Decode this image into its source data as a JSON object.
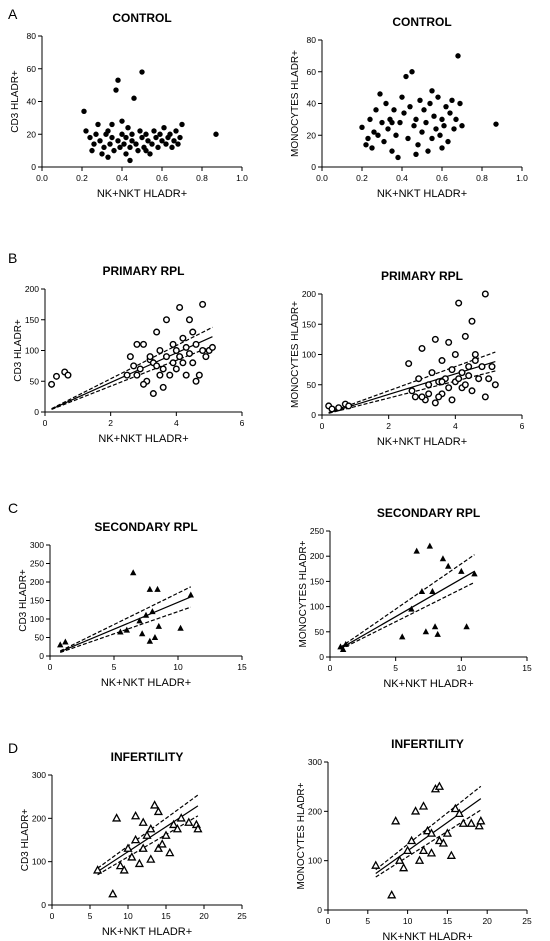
{
  "panel_letters": [
    "A",
    "B",
    "C",
    "D"
  ],
  "chart_data": [
    {
      "type": "scatter",
      "panel": "A",
      "title": "CONTROL",
      "xlabel": "NK+NKT HLADR+",
      "ylabel": "CD3 HLADR+",
      "xlim": [
        0,
        1
      ],
      "ylim": [
        0,
        80
      ],
      "xticks": [
        "0.0",
        "0.2",
        "0.4",
        "0.6",
        "0.8",
        "1.0"
      ],
      "yticks": [
        "0",
        "20",
        "40",
        "60",
        "80"
      ],
      "marker": "filled-circle",
      "fit": false,
      "points": [
        [
          0.21,
          34
        ],
        [
          0.22,
          22
        ],
        [
          0.24,
          18
        ],
        [
          0.25,
          10
        ],
        [
          0.26,
          14
        ],
        [
          0.27,
          20
        ],
        [
          0.28,
          26
        ],
        [
          0.29,
          16
        ],
        [
          0.3,
          8
        ],
        [
          0.31,
          12
        ],
        [
          0.32,
          20
        ],
        [
          0.33,
          22
        ],
        [
          0.34,
          14
        ],
        [
          0.35,
          18
        ],
        [
          0.35,
          26
        ],
        [
          0.36,
          10
        ],
        [
          0.37,
          47
        ],
        [
          0.38,
          53
        ],
        [
          0.38,
          16
        ],
        [
          0.39,
          12
        ],
        [
          0.4,
          20
        ],
        [
          0.4,
          28
        ],
        [
          0.41,
          14
        ],
        [
          0.42,
          18
        ],
        [
          0.42,
          8
        ],
        [
          0.43,
          24
        ],
        [
          0.44,
          12
        ],
        [
          0.45,
          16
        ],
        [
          0.45,
          20
        ],
        [
          0.46,
          42
        ],
        [
          0.47,
          14
        ],
        [
          0.48,
          10
        ],
        [
          0.49,
          22
        ],
        [
          0.5,
          58
        ],
        [
          0.5,
          18
        ],
        [
          0.51,
          12
        ],
        [
          0.52,
          20
        ],
        [
          0.53,
          16
        ],
        [
          0.54,
          8
        ],
        [
          0.55,
          14
        ],
        [
          0.56,
          22
        ],
        [
          0.57,
          18
        ],
        [
          0.58,
          12
        ],
        [
          0.59,
          20
        ],
        [
          0.6,
          16
        ],
        [
          0.61,
          24
        ],
        [
          0.62,
          14
        ],
        [
          0.63,
          18
        ],
        [
          0.64,
          20
        ],
        [
          0.65,
          12
        ],
        [
          0.66,
          16
        ],
        [
          0.67,
          22
        ],
        [
          0.68,
          14
        ],
        [
          0.69,
          18
        ],
        [
          0.7,
          26
        ],
        [
          0.87,
          20
        ],
        [
          0.33,
          6
        ],
        [
          0.44,
          4
        ],
        [
          0.52,
          10
        ]
      ]
    },
    {
      "type": "scatter",
      "panel": "A",
      "title": "CONTROL",
      "xlabel": "NK+NKT HLADR+",
      "ylabel": "MONOCYTES HLADR+",
      "xlim": [
        0,
        1
      ],
      "ylim": [
        0,
        80
      ],
      "xticks": [
        "0.0",
        "0.2",
        "0.4",
        "0.6",
        "0.8",
        "1.0"
      ],
      "yticks": [
        "0",
        "20",
        "40",
        "60",
        "80"
      ],
      "marker": "filled-circle",
      "fit": false,
      "points": [
        [
          0.2,
          25
        ],
        [
          0.22,
          14
        ],
        [
          0.23,
          18
        ],
        [
          0.24,
          30
        ],
        [
          0.25,
          12
        ],
        [
          0.26,
          22
        ],
        [
          0.27,
          36
        ],
        [
          0.28,
          20
        ],
        [
          0.29,
          46
        ],
        [
          0.3,
          28
        ],
        [
          0.31,
          16
        ],
        [
          0.32,
          40
        ],
        [
          0.33,
          24
        ],
        [
          0.34,
          30
        ],
        [
          0.35,
          10
        ],
        [
          0.36,
          36
        ],
        [
          0.37,
          20
        ],
        [
          0.38,
          6
        ],
        [
          0.39,
          28
        ],
        [
          0.4,
          44
        ],
        [
          0.41,
          34
        ],
        [
          0.42,
          57
        ],
        [
          0.43,
          18
        ],
        [
          0.44,
          38
        ],
        [
          0.45,
          60
        ],
        [
          0.46,
          26
        ],
        [
          0.47,
          30
        ],
        [
          0.48,
          14
        ],
        [
          0.49,
          42
        ],
        [
          0.5,
          22
        ],
        [
          0.51,
          36
        ],
        [
          0.52,
          28
        ],
        [
          0.53,
          10
        ],
        [
          0.54,
          40
        ],
        [
          0.55,
          18
        ],
        [
          0.56,
          32
        ],
        [
          0.57,
          24
        ],
        [
          0.58,
          44
        ],
        [
          0.59,
          20
        ],
        [
          0.6,
          30
        ],
        [
          0.61,
          26
        ],
        [
          0.62,
          38
        ],
        [
          0.63,
          16
        ],
        [
          0.64,
          34
        ],
        [
          0.65,
          42
        ],
        [
          0.66,
          24
        ],
        [
          0.67,
          30
        ],
        [
          0.68,
          70
        ],
        [
          0.69,
          40
        ],
        [
          0.7,
          26
        ],
        [
          0.87,
          27
        ],
        [
          0.35,
          28
        ],
        [
          0.47,
          8
        ],
        [
          0.55,
          48
        ],
        [
          0.6,
          12
        ]
      ]
    },
    {
      "type": "scatter",
      "panel": "B",
      "title": "PRIMARY RPL",
      "xlabel": "NK+NKT HLADR+",
      "ylabel": "CD3 HLADR+",
      "xlim": [
        0,
        6
      ],
      "ylim": [
        0,
        200
      ],
      "xticks": [
        "0",
        "2",
        "4",
        "6"
      ],
      "yticks": [
        "0",
        "50",
        "100",
        "150",
        "200"
      ],
      "marker": "open-circle",
      "fit": true,
      "fit_line": {
        "slope": 24,
        "intercept": 0
      },
      "ci": {
        "low_slope": 21,
        "high_slope": 27
      },
      "points": [
        [
          0.2,
          45
        ],
        [
          0.35,
          58
        ],
        [
          0.6,
          65
        ],
        [
          0.7,
          60
        ],
        [
          2.5,
          60
        ],
        [
          2.6,
          90
        ],
        [
          2.7,
          75
        ],
        [
          2.8,
          110
        ],
        [
          2.9,
          70
        ],
        [
          3.0,
          110
        ],
        [
          3.1,
          50
        ],
        [
          3.2,
          85
        ],
        [
          3.3,
          80
        ],
        [
          3.3,
          30
        ],
        [
          3.4,
          130
        ],
        [
          3.5,
          60
        ],
        [
          3.5,
          100
        ],
        [
          3.6,
          40
        ],
        [
          3.6,
          70
        ],
        [
          3.7,
          90
        ],
        [
          3.7,
          150
        ],
        [
          3.8,
          60
        ],
        [
          3.9,
          80
        ],
        [
          3.9,
          110
        ],
        [
          4.0,
          70
        ],
        [
          4.0,
          100
        ],
        [
          4.1,
          90
        ],
        [
          4.1,
          170
        ],
        [
          4.2,
          120
        ],
        [
          4.2,
          80
        ],
        [
          4.3,
          105
        ],
        [
          4.3,
          60
        ],
        [
          4.4,
          150
        ],
        [
          4.4,
          95
        ],
        [
          4.5,
          80
        ],
        [
          4.5,
          130
        ],
        [
          4.6,
          110
        ],
        [
          4.7,
          60
        ],
        [
          4.8,
          100
        ],
        [
          4.8,
          175
        ],
        [
          4.9,
          90
        ],
        [
          5.0,
          100
        ],
        [
          5.1,
          105
        ],
        [
          4.6,
          50
        ],
        [
          3.4,
          75
        ],
        [
          2.8,
          60
        ],
        [
          3.0,
          45
        ],
        [
          3.2,
          90
        ]
      ]
    },
    {
      "type": "scatter",
      "panel": "B",
      "title": "PRIMARY RPL",
      "xlabel": "NK+NKT HLADR+",
      "ylabel": "MONOCYTES HLADR+",
      "xlim": [
        0,
        6
      ],
      "ylim": [
        0,
        200
      ],
      "xticks": [
        "0",
        "2",
        "4",
        "6"
      ],
      "yticks": [
        "0",
        "50",
        "100",
        "150",
        "200"
      ],
      "marker": "open-circle",
      "fit": true,
      "fit_line": {
        "slope": 17,
        "intercept": 0
      },
      "ci": {
        "low_slope": 14,
        "high_slope": 20
      },
      "points": [
        [
          0.2,
          15
        ],
        [
          0.3,
          10
        ],
        [
          0.5,
          12
        ],
        [
          0.7,
          18
        ],
        [
          0.8,
          15
        ],
        [
          2.6,
          85
        ],
        [
          2.7,
          40
        ],
        [
          2.8,
          30
        ],
        [
          2.9,
          60
        ],
        [
          3.0,
          110
        ],
        [
          3.1,
          25
        ],
        [
          3.2,
          50
        ],
        [
          3.3,
          70
        ],
        [
          3.4,
          20
        ],
        [
          3.4,
          125
        ],
        [
          3.5,
          55
        ],
        [
          3.6,
          90
        ],
        [
          3.6,
          35
        ],
        [
          3.7,
          60
        ],
        [
          3.8,
          120
        ],
        [
          3.8,
          45
        ],
        [
          3.9,
          75
        ],
        [
          4.0,
          55
        ],
        [
          4.0,
          100
        ],
        [
          4.1,
          60
        ],
        [
          4.1,
          185
        ],
        [
          4.2,
          45
        ],
        [
          4.2,
          70
        ],
        [
          4.3,
          130
        ],
        [
          4.3,
          50
        ],
        [
          4.4,
          80
        ],
        [
          4.4,
          65
        ],
        [
          4.5,
          155
        ],
        [
          4.5,
          40
        ],
        [
          4.6,
          90
        ],
        [
          4.7,
          60
        ],
        [
          4.8,
          80
        ],
        [
          4.9,
          200
        ],
        [
          4.9,
          30
        ],
        [
          5.0,
          60
        ],
        [
          5.1,
          80
        ],
        [
          5.2,
          50
        ],
        [
          3.0,
          30
        ],
        [
          3.2,
          35
        ],
        [
          3.5,
          30
        ],
        [
          3.9,
          25
        ],
        [
          4.6,
          100
        ],
        [
          3.6,
          55
        ]
      ]
    },
    {
      "type": "scatter",
      "panel": "C",
      "title": "SECONDARY RPL",
      "xlabel": "NK+NKT HLADR+",
      "ylabel": "CD3 HLADR+",
      "xlim": [
        0,
        15
      ],
      "ylim": [
        0,
        300
      ],
      "xticks": [
        "0",
        "5",
        "10",
        "15"
      ],
      "yticks": [
        "0",
        "50",
        "100",
        "150",
        "200",
        "250",
        "300"
      ],
      "marker": "filled-triangle",
      "fit": true,
      "fit_line": {
        "slope": 14.5,
        "intercept": 0
      },
      "ci": {
        "low_slope": 12,
        "high_slope": 17
      },
      "points": [
        [
          0.8,
          30
        ],
        [
          1.2,
          38
        ],
        [
          5.5,
          65
        ],
        [
          6.0,
          70
        ],
        [
          6.5,
          225
        ],
        [
          7.0,
          95
        ],
        [
          7.2,
          60
        ],
        [
          7.5,
          110
        ],
        [
          7.8,
          180
        ],
        [
          8.0,
          120
        ],
        [
          8.2,
          50
        ],
        [
          8.4,
          180
        ],
        [
          8.5,
          80
        ],
        [
          7.8,
          40
        ],
        [
          10.2,
          75
        ],
        [
          11.0,
          165
        ]
      ]
    },
    {
      "type": "scatter",
      "panel": "C",
      "title": "SECONDARY RPL",
      "xlabel": "NK+NKT HLADR+",
      "ylabel": "MONOCYTES HLADR+",
      "xlim": [
        0,
        15
      ],
      "ylim": [
        0,
        250
      ],
      "xticks": [
        "0",
        "5",
        "10",
        "15"
      ],
      "yticks": [
        "0",
        "50",
        "100",
        "150",
        "200",
        "250"
      ],
      "marker": "filled-triangle",
      "fit": true,
      "fit_line": {
        "slope": 15,
        "intercept": 5
      },
      "ci": {
        "low_slope": 13,
        "high_slope": 18
      },
      "points": [
        [
          0.8,
          20
        ],
        [
          1.0,
          15
        ],
        [
          1.2,
          25
        ],
        [
          5.5,
          40
        ],
        [
          6.2,
          95
        ],
        [
          6.6,
          210
        ],
        [
          7.0,
          130
        ],
        [
          7.3,
          50
        ],
        [
          7.6,
          220
        ],
        [
          7.8,
          130
        ],
        [
          8.0,
          60
        ],
        [
          8.2,
          45
        ],
        [
          8.6,
          195
        ],
        [
          9.0,
          180
        ],
        [
          10.0,
          170
        ],
        [
          10.4,
          60
        ],
        [
          11.0,
          165
        ]
      ]
    },
    {
      "type": "scatter",
      "panel": "D",
      "title": "INFERTILITY",
      "xlabel": "NK+NKT HLADR+",
      "ylabel": "CD3 HLADR+",
      "xlim": [
        0,
        25
      ],
      "ylim": [
        0,
        300
      ],
      "xticks": [
        "0",
        "5",
        "10",
        "15",
        "20",
        "25"
      ],
      "yticks": [
        "0",
        "100",
        "200",
        "300"
      ],
      "marker": "open-triangle",
      "fit": true,
      "fit_line": {
        "slope": 11.5,
        "intercept": 8
      },
      "ci": {
        "low_slope": 10.3,
        "high_slope": 12.8
      },
      "points": [
        [
          6,
          80
        ],
        [
          8,
          25
        ],
        [
          8.5,
          200
        ],
        [
          9,
          90
        ],
        [
          9.5,
          80
        ],
        [
          10,
          130
        ],
        [
          10.5,
          110
        ],
        [
          11,
          205
        ],
        [
          11,
          150
        ],
        [
          11.5,
          95
        ],
        [
          12,
          190
        ],
        [
          12,
          130
        ],
        [
          12.5,
          160
        ],
        [
          13,
          105
        ],
        [
          13,
          175
        ],
        [
          13.5,
          230
        ],
        [
          14,
          130
        ],
        [
          14,
          215
        ],
        [
          14.5,
          140
        ],
        [
          15,
          160
        ],
        [
          15.5,
          120
        ],
        [
          16,
          185
        ],
        [
          16.5,
          175
        ],
        [
          17,
          200
        ],
        [
          18,
          190
        ],
        [
          19,
          185
        ],
        [
          19.2,
          175
        ]
      ]
    },
    {
      "type": "scatter",
      "panel": "D",
      "title": "INFERTILITY",
      "xlabel": "NK+NKT HLADR+",
      "ylabel": "MONOCYTES HLADR+",
      "xlim": [
        0,
        25
      ],
      "ylim": [
        0,
        300
      ],
      "xticks": [
        "0",
        "5",
        "10",
        "15",
        "20",
        "25"
      ],
      "yticks": [
        "0",
        "100",
        "200",
        "300"
      ],
      "marker": "open-triangle",
      "fit": true,
      "fit_line": {
        "slope": 11.5,
        "intercept": 5
      },
      "ci": {
        "low_slope": 10.3,
        "high_slope": 12.8
      },
      "points": [
        [
          6,
          90
        ],
        [
          8,
          30
        ],
        [
          8.5,
          180
        ],
        [
          9,
          100
        ],
        [
          9.5,
          85
        ],
        [
          10,
          120
        ],
        [
          10.5,
          140
        ],
        [
          11,
          200
        ],
        [
          11.5,
          100
        ],
        [
          12,
          120
        ],
        [
          12,
          210
        ],
        [
          12.5,
          160
        ],
        [
          13,
          115
        ],
        [
          13,
          155
        ],
        [
          13.5,
          245
        ],
        [
          14,
          140
        ],
        [
          14,
          250
        ],
        [
          14.5,
          135
        ],
        [
          15,
          155
        ],
        [
          15.5,
          110
        ],
        [
          16,
          205
        ],
        [
          16.5,
          195
        ],
        [
          17,
          175
        ],
        [
          18,
          175
        ],
        [
          19,
          170
        ],
        [
          19.2,
          180
        ]
      ]
    }
  ]
}
